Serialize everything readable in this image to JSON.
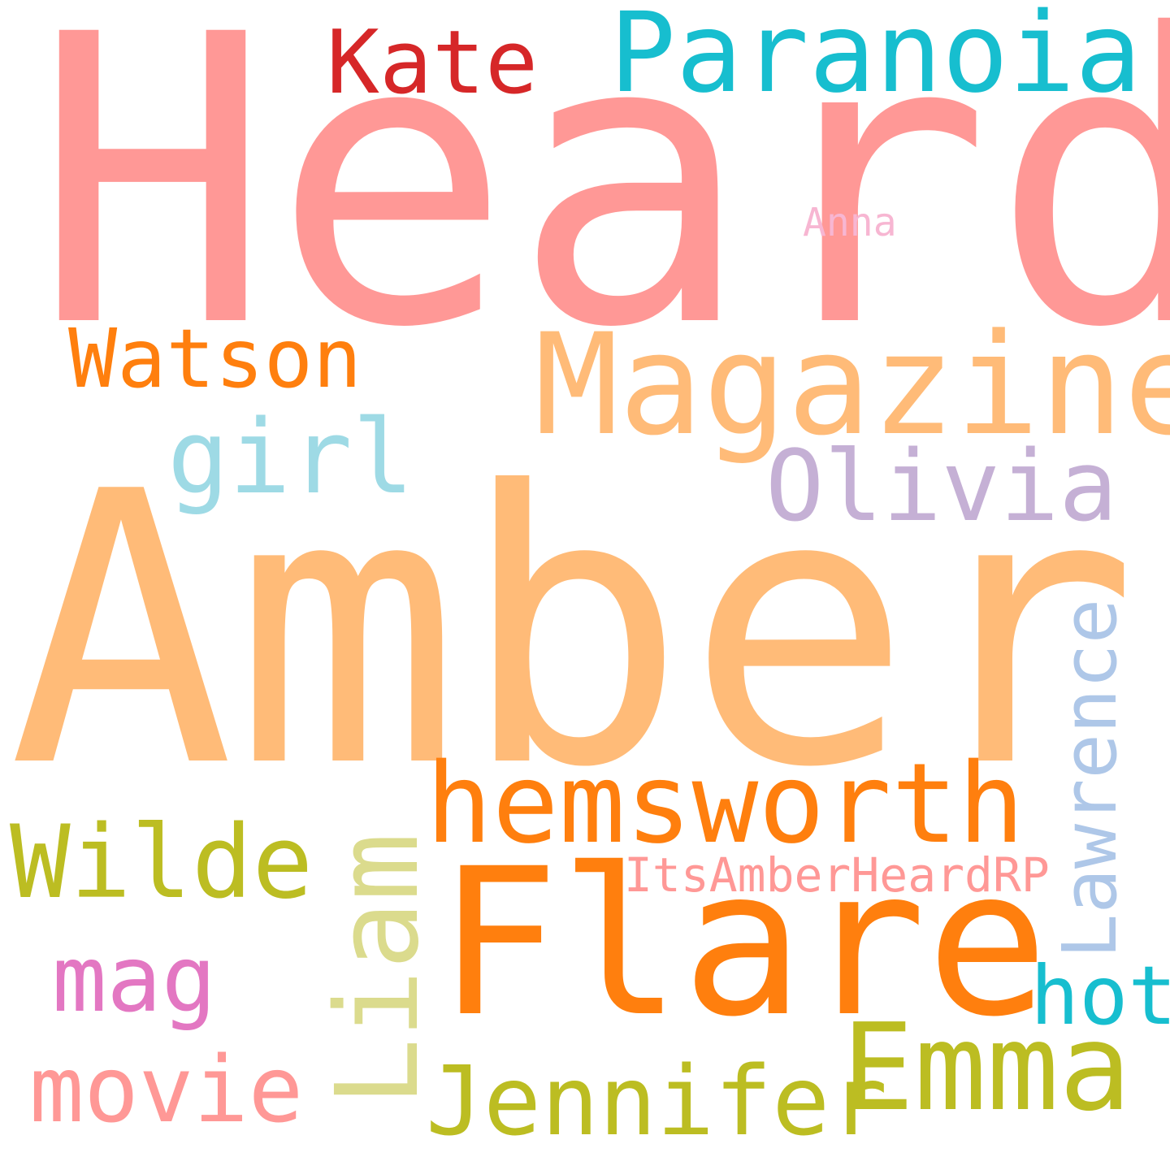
{
  "words": {
    "heard": {
      "text": "Heard",
      "color": "#ff9896"
    },
    "amber": {
      "text": "Amber",
      "color": "#ffbb78"
    },
    "flare": {
      "text": "Flare",
      "color": "#ff7f0e"
    },
    "magazine": {
      "text": "Magazine",
      "color": "#ffbb78"
    },
    "paranoia": {
      "text": "Paranoia",
      "color": "#17becf"
    },
    "hemsworth": {
      "text": "hemsworth",
      "color": "#ff7f0e"
    },
    "olivia": {
      "text": "Olivia",
      "color": "#c5b0d5"
    },
    "girl": {
      "text": "girl",
      "color": "#9edae5"
    },
    "watson": {
      "text": "Watson",
      "color": "#ff7f0e"
    },
    "kate": {
      "text": "Kate",
      "color": "#d62728"
    },
    "anna": {
      "text": "Anna",
      "color": "#f7b6d2"
    },
    "wilde": {
      "text": "Wilde",
      "color": "#bcbd22"
    },
    "liam": {
      "text": "Liam",
      "color": "#dbdb8d"
    },
    "lawrence": {
      "text": "Lawrence",
      "color": "#aec7e8"
    },
    "itsamber": {
      "text": "ItsAmberHeardRP",
      "color": "#ff9896"
    },
    "emma": {
      "text": "Emma",
      "color": "#bcbd22"
    },
    "jennifer": {
      "text": "Jennifer",
      "color": "#bcbd22"
    },
    "mag": {
      "text": "mag",
      "color": "#e377c2"
    },
    "movie": {
      "text": "movie",
      "color": "#ff9896"
    },
    "hot": {
      "text": "hot",
      "color": "#17becf"
    }
  }
}
